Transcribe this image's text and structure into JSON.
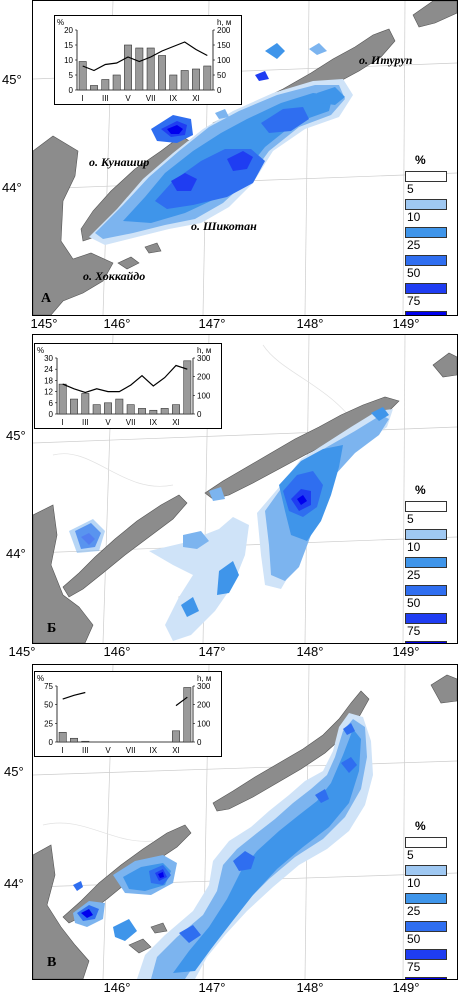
{
  "legend": {
    "unit": "%",
    "levels": [
      "5",
      "10",
      "25",
      "50",
      "75"
    ],
    "colors": [
      "#ffffff",
      "#9fc8f2",
      "#3f95ea",
      "#2f6ef0",
      "#1f3df2",
      "#0000ee"
    ]
  },
  "latitudes": [
    "45°",
    "44°"
  ],
  "longitudes": [
    "145°",
    "146°",
    "147°",
    "148°",
    "149°"
  ],
  "longitudes_c": [
    "146°",
    "147°",
    "148°",
    "149°"
  ],
  "inset_labels": {
    "y_left": "%",
    "y_right": "h, м",
    "months": [
      "I",
      "III",
      "V",
      "VII",
      "IX",
      "XI"
    ]
  },
  "panels": [
    {
      "letter": "А",
      "places": {
        "iturup": "о. Итуруп",
        "kunashir": "о. Кунашир",
        "shikotan": "о. Шикотан",
        "hokkaido": "о. Хоккайдо"
      },
      "inset": {
        "left_ticks": [
          "0",
          "5",
          "10",
          "15",
          "20"
        ],
        "right_ticks": [
          "0",
          "50",
          "100",
          "150",
          "200"
        ],
        "bars": [
          9.5,
          1.5,
          3.5,
          5,
          15,
          14,
          14,
          11.5,
          5,
          6.5,
          7,
          8
        ],
        "left_max": 20,
        "depth": [
          80,
          65,
          85,
          90,
          110,
          95,
          110,
          130,
          145,
          160,
          135,
          115
        ],
        "right_max": 200
      }
    },
    {
      "letter": "Б",
      "inset": {
        "left_ticks": [
          "0",
          "6",
          "12",
          "18",
          "24",
          "30"
        ],
        "right_ticks": [
          "0",
          "100",
          "200",
          "300"
        ],
        "bars": [
          16,
          8,
          11,
          5,
          6,
          8,
          5,
          3,
          2,
          3,
          5,
          28.5
        ],
        "left_max": 30,
        "depth": [
          160,
          135,
          115,
          135,
          120,
          120,
          155,
          205,
          150,
          195,
          260,
          240
        ],
        "right_max": 300
      }
    },
    {
      "letter": "В",
      "inset": {
        "left_ticks": [
          "0",
          "25",
          "50",
          "75"
        ],
        "right_ticks": [
          "0",
          "100",
          "200",
          "300"
        ],
        "bars": [
          13,
          5,
          1,
          0,
          0,
          0,
          0,
          0,
          0,
          0,
          15,
          73
        ],
        "left_max": 75,
        "depth": [
          230,
          250,
          265,
          null,
          null,
          null,
          null,
          null,
          null,
          null,
          195,
          240
        ],
        "right_max": 300
      }
    }
  ]
}
